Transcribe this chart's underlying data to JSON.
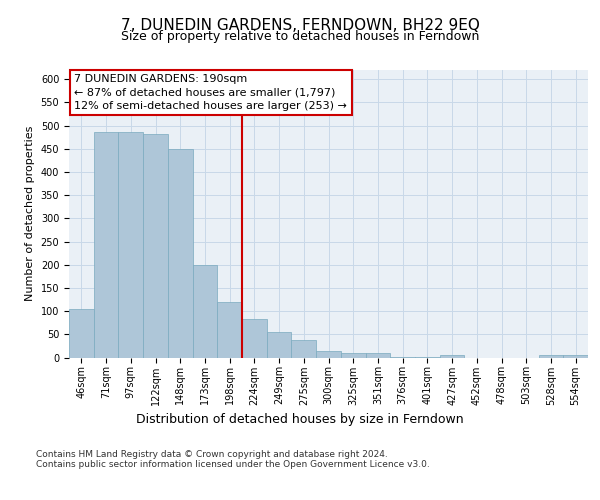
{
  "title": "7, DUNEDIN GARDENS, FERNDOWN, BH22 9EQ",
  "subtitle": "Size of property relative to detached houses in Ferndown",
  "xlabel_bottom": "Distribution of detached houses by size in Ferndown",
  "ylabel": "Number of detached properties",
  "categories": [
    "46sqm",
    "71sqm",
    "97sqm",
    "122sqm",
    "148sqm",
    "173sqm",
    "198sqm",
    "224sqm",
    "249sqm",
    "275sqm",
    "300sqm",
    "325sqm",
    "351sqm",
    "376sqm",
    "401sqm",
    "427sqm",
    "452sqm",
    "478sqm",
    "503sqm",
    "528sqm",
    "554sqm"
  ],
  "values": [
    105,
    487,
    487,
    483,
    450,
    200,
    120,
    82,
    55,
    37,
    14,
    9,
    9,
    1,
    1,
    5,
    0,
    0,
    0,
    5,
    5
  ],
  "bar_color": "#aec6d8",
  "bar_edge_color": "#7aaabf",
  "grid_color": "#c8d8e8",
  "bg_color": "#eaf0f6",
  "annotation_box_text": "7 DUNEDIN GARDENS: 190sqm\n← 87% of detached houses are smaller (1,797)\n12% of semi-detached houses are larger (253) →",
  "annotation_box_color": "#cc0000",
  "vline_x_index": 6.5,
  "vline_color": "#cc0000",
  "ylim": [
    0,
    620
  ],
  "yticks": [
    0,
    50,
    100,
    150,
    200,
    250,
    300,
    350,
    400,
    450,
    500,
    550,
    600
  ],
  "footer_text": "Contains HM Land Registry data © Crown copyright and database right 2024.\nContains public sector information licensed under the Open Government Licence v3.0.",
  "title_fontsize": 11,
  "subtitle_fontsize": 9,
  "annot_fontsize": 8,
  "ylabel_fontsize": 8,
  "xlabel_fontsize": 9,
  "tick_fontsize": 7,
  "footer_fontsize": 6.5
}
